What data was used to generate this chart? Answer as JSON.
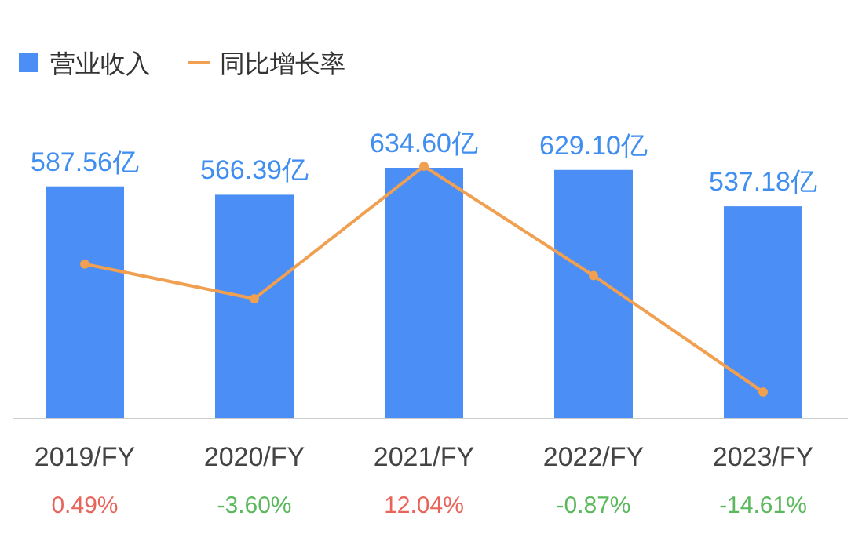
{
  "chart_data": {
    "type": "bar",
    "categories": [
      "2019/FY",
      "2020/FY",
      "2021/FY",
      "2022/FY",
      "2023/FY"
    ],
    "series": [
      {
        "name": "营业收入",
        "color": "#4b8ef5",
        "values": [
          587.56,
          566.39,
          634.6,
          629.1,
          537.18
        ],
        "value_labels": [
          "587.56亿",
          "566.39亿",
          "634.60亿",
          "629.10亿",
          "537.18亿"
        ]
      },
      {
        "name": "同比增长率",
        "type": "line",
        "axis": "y2",
        "color": "#f0a050",
        "values": [
          0.49,
          -3.6,
          12.04,
          -0.87,
          -14.61
        ],
        "value_labels": [
          "0.49%",
          "-3.60%",
          "12.04%",
          "-0.87%",
          "-14.61%"
        ]
      }
    ],
    "legend": "top left",
    "marker": "circle",
    "tick_labels": "x"
  }
}
